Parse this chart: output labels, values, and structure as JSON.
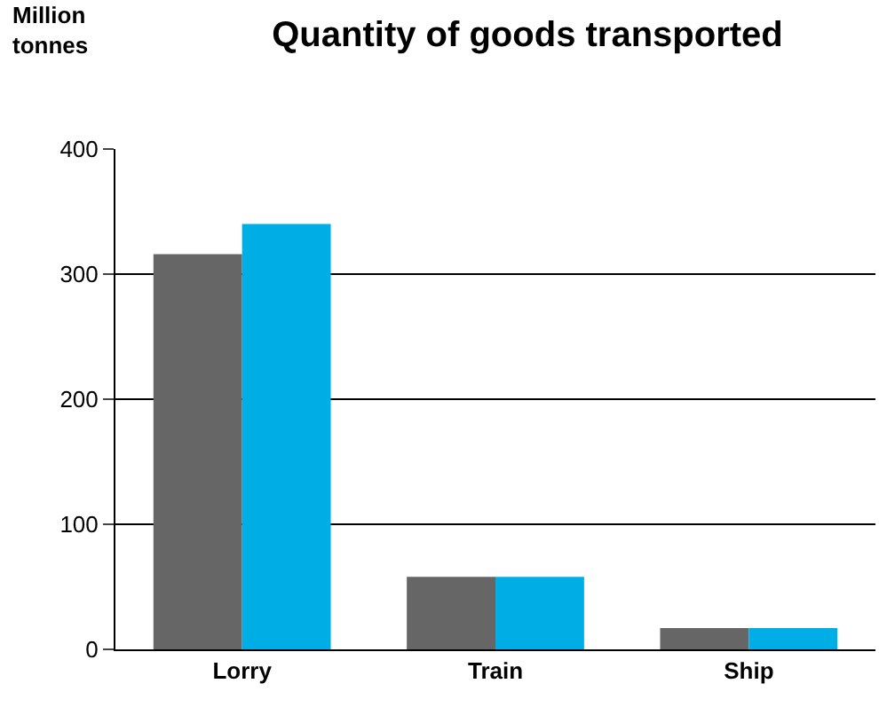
{
  "chart_data": {
    "type": "bar",
    "title": "Quantity of goods transported",
    "ylabel": "Million\ntonnes",
    "categories": [
      "Lorry",
      "Train",
      "Ship"
    ],
    "series": [
      {
        "color": "#666666",
        "values": [
          316,
          58,
          17
        ]
      },
      {
        "color": "#00aee6",
        "values": [
          340,
          58,
          17
        ]
      }
    ],
    "ylim": [
      0,
      400
    ],
    "yticks": [
      0,
      100,
      200,
      300,
      400
    ],
    "grid": "y"
  }
}
